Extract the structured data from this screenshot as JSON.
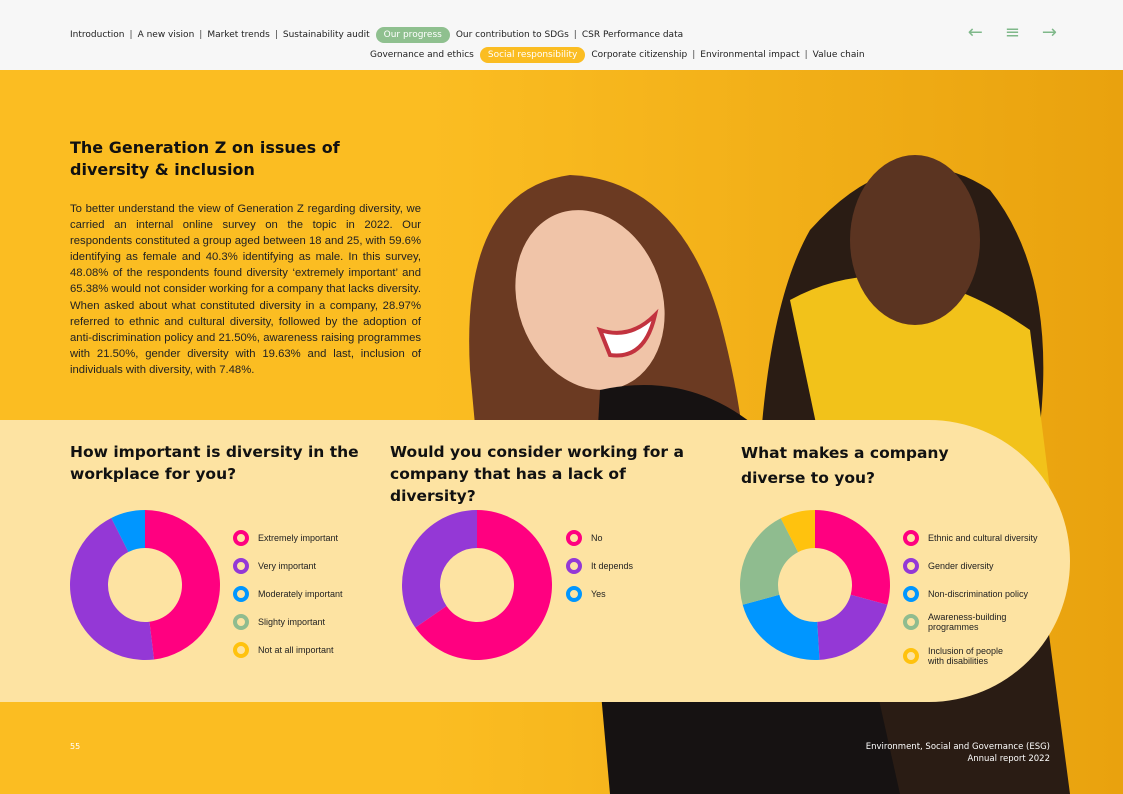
{
  "nav": {
    "row1": [
      "Introduction",
      "A new vision",
      "Market trends",
      "Sustainability audit"
    ],
    "row1_active": "Our progress",
    "row1_after": [
      "Our contribution to SDGs",
      "CSR Performance data"
    ],
    "row2_before": "Governance and ethics",
    "row2_active": "Social responsibility",
    "row2_after": [
      "Corporate citizenship",
      "Environmental impact",
      "Value chain"
    ],
    "prev_icon": "←",
    "menu_icon": "≡",
    "next_icon": "→",
    "active1_color": "#8fc08f",
    "active2_color": "#fbbd22"
  },
  "intro": {
    "title": "The Generation Z on issues of diversity & inclusion",
    "text": "To better understand the view of Generation Z regarding diversity, we carried an internal online survey on the topic in 2022. Our respondents constituted a group aged between 18 and 25, with 59.6% identifying as female and 40.3% identifying as male. In this survey, 48.08% of the respondents found diversity ‘extremely important’ and 65.38% would not consider working for a company that lacks diversity. When asked about what constituted diversity in a company, 28.97% referred to ethnic and cultural diversity, followed by the adoption of anti-discrimination policy and 21.50%, awareness raising programmes with 21.50%, gender diversity with 19.63% and last, inclusion of individuals with diversity, with 7.48%."
  },
  "chart_data": [
    {
      "type": "pie",
      "donut": true,
      "title": "How important is diversity in the workplace for you?",
      "categories": [
        "Extremely important",
        "Very important",
        "Moderately important",
        "Slighty important",
        "Not at all important"
      ],
      "values": [
        48.08,
        44.5,
        7.42,
        0,
        0
      ],
      "colors": [
        "#ff0080",
        "#9438d6",
        "#0096ff",
        "#8fbc8f",
        "#ffc20e"
      ],
      "legend": "right"
    },
    {
      "type": "pie",
      "donut": true,
      "title": "Would you consider working for a company that has a lack of diversity?",
      "categories": [
        "No",
        "It depends",
        "Yes"
      ],
      "values": [
        65.38,
        34.62,
        0
      ],
      "colors": [
        "#ff0080",
        "#9438d6",
        "#0096ff"
      ],
      "legend": "right"
    },
    {
      "type": "pie",
      "donut": true,
      "title": "What makes a company diverse to you?",
      "categories": [
        "Ethnic and cultural diversity",
        "Gender diversity",
        "Non-discrimination policy",
        "Awareness-building programmes",
        "Inclusion of people with disabilities"
      ],
      "values": [
        28.97,
        19.63,
        21.5,
        21.5,
        7.48
      ],
      "colors": [
        "#ff0080",
        "#9438d6",
        "#0096ff",
        "#8fbc8f",
        "#ffc20e"
      ],
      "legend": "right"
    }
  ],
  "footer": {
    "page": "55",
    "line1": "Environment, Social and Governance (ESG)",
    "line2": "Annual report 2022"
  }
}
